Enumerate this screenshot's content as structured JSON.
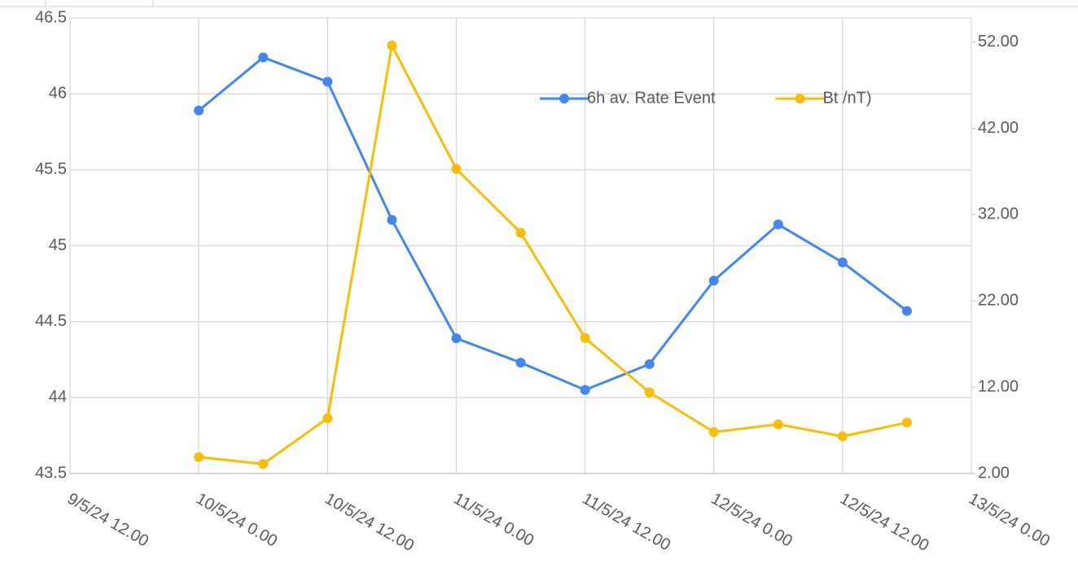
{
  "chart_data": {
    "type": "line",
    "x": [
      "10/5/24 0.00",
      "10/5/24 6.00",
      "10/5/24 12.00",
      "10/5/24 18.00",
      "11/5/24 0.00",
      "11/5/24 6.00",
      "11/5/24 12.00",
      "11/5/24 18.00",
      "12/5/24 0.00",
      "12/5/24 6.00",
      "12/5/24 12.00",
      "12/5/24 18.00"
    ],
    "series": [
      {
        "name": "6h av. Rate Event",
        "color": "#4285f4",
        "values": [
          45.89,
          46.24,
          46.08,
          45.17,
          44.39,
          44.23,
          44.05,
          44.22,
          44.77,
          45.14,
          44.89,
          44.57
        ]
      },
      {
        "name": "Bt /nT)",
        "color": "#fbbc04",
        "axis": "y2",
        "values": [
          3.9,
          3.1,
          8.4,
          51.6,
          37.3,
          29.9,
          17.7,
          11.4,
          6.8,
          7.7,
          6.3,
          7.9
        ]
      }
    ],
    "xlim": [
      "9/5/24 12.00",
      "13/5/24 0.00"
    ],
    "xticks": [
      "9/5/24 12.00",
      "10/5/24 0.00",
      "10/5/24 12.00",
      "11/5/24 0.00",
      "11/5/24 12.00",
      "12/5/24 0.00",
      "12/5/24 12.00",
      "13/5/24 0.00"
    ],
    "ylim": [
      43.5,
      46.5
    ],
    "yticks": [
      43.5,
      44,
      44.5,
      45,
      45.5,
      46,
      46.5
    ],
    "y2lim": [
      2,
      54.8
    ],
    "y2ticks": [
      {
        "value": 2,
        "label": "2.00"
      },
      {
        "value": 12,
        "label": "12.00"
      },
      {
        "value": 22,
        "label": "22.00"
      },
      {
        "value": 32,
        "label": "32.00"
      },
      {
        "value": 42,
        "label": "42.00"
      },
      {
        "value": 52,
        "label": "52.00"
      }
    ],
    "grid": true,
    "legend": "top-right"
  }
}
